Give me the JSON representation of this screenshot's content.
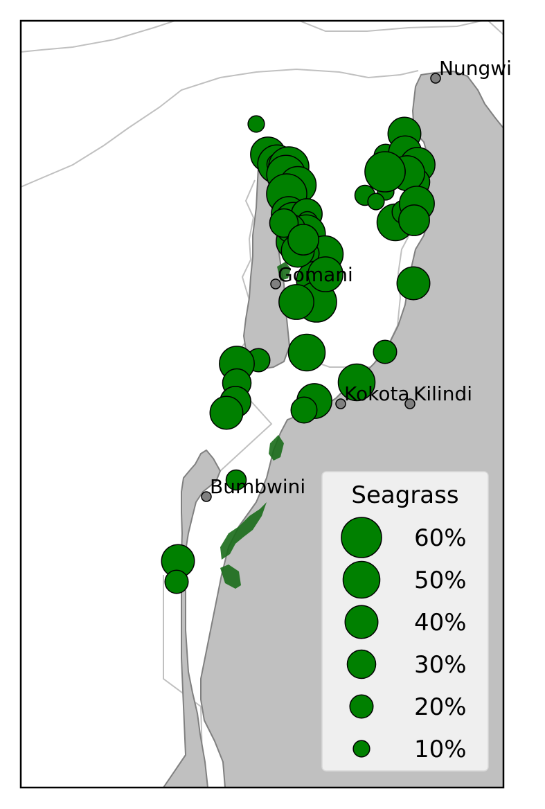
{
  "colors": {
    "land": "#c0c0c0",
    "coastline": "#808080",
    "boundary": "#c0c0c0",
    "seagrass_fill": "#008000",
    "seagrass_edge": "#000000",
    "town_marker": "#808080",
    "frame": "#000000",
    "legend_bg": "#f2f2f2"
  },
  "towns": [
    {
      "name": "Nungwi"
    },
    {
      "name": "Gomani"
    },
    {
      "name": "Kokota"
    },
    {
      "name": "Kilindi"
    },
    {
      "name": "Bumbwini"
    }
  ],
  "seagrass_sites_cover_pct": [
    10,
    45,
    55,
    15,
    60,
    55,
    50,
    60,
    45,
    55,
    35,
    15,
    55,
    45,
    50,
    20,
    55,
    60,
    45,
    50,
    20,
    45,
    50,
    20,
    45,
    30,
    35,
    40,
    25,
    15,
    40,
    20,
    40,
    40,
    20,
    15,
    40,
    45,
    30,
    45,
    45,
    10,
    50,
    20,
    60,
    10,
    45,
    35,
    45,
    30,
    30,
    30,
    40,
    35
  ],
  "legend": {
    "title": "Seagrass",
    "items": [
      {
        "label": "60%",
        "value": 60
      },
      {
        "label": "50%",
        "value": 50
      },
      {
        "label": "40%",
        "value": 40
      },
      {
        "label": "30%",
        "value": 30
      },
      {
        "label": "20%",
        "value": 20
      },
      {
        "label": "10%",
        "value": 10
      }
    ]
  }
}
